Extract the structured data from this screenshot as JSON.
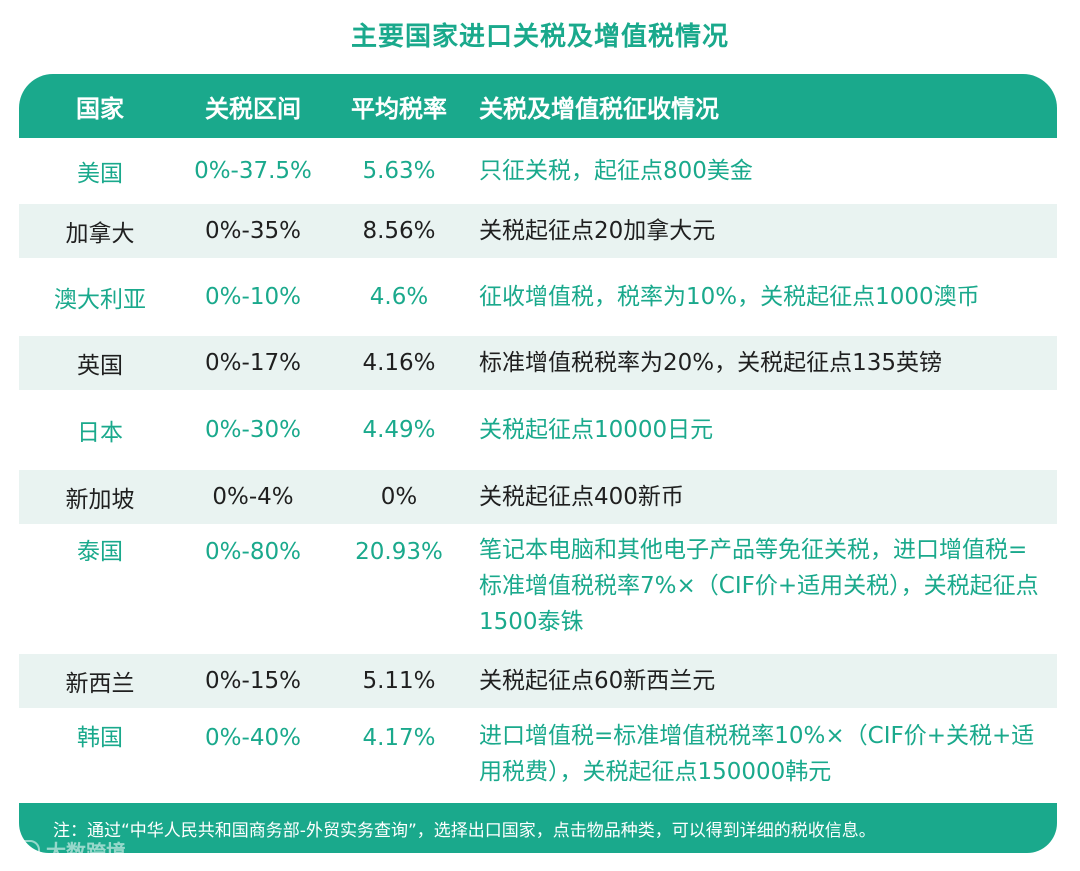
{
  "title": "主要国家进口关税及增值税情况",
  "header": {
    "country": "国家",
    "range": "关税区间",
    "avg": "平均税率",
    "info": "关税及增值税征收情况"
  },
  "rows": [
    {
      "country": "美国",
      "range": "0%-37.5%",
      "avg": "5.63%",
      "info": "只征关税，起征点800美金"
    },
    {
      "country": "加拿大",
      "range": "0%-35%",
      "avg": "8.56%",
      "info": "关税起征点20加拿大元"
    },
    {
      "country": "澳大利亚",
      "range": "0%-10%",
      "avg": "4.6%",
      "info": "征收增值税，税率为10%，关税起征点1000澳币"
    },
    {
      "country": "英国",
      "range": "0%-17%",
      "avg": "4.16%",
      "info": "标准增值税税率为20%，关税起征点135英镑"
    },
    {
      "country": "日本",
      "range": "0%-30%",
      "avg": "4.49%",
      "info": "关税起征点10000日元"
    },
    {
      "country": "新加坡",
      "range": "0%-4%",
      "avg": "0%",
      "info": "关税起征点400新币"
    },
    {
      "country": "泰国",
      "range": "0%-80%",
      "avg": "20.93%",
      "info": "笔记本电脑和其他电子产品等免征关税，进口增值税=标准增值税税率7%×（CIF价+适用关税），关税起征点1500泰铢"
    },
    {
      "country": "新西兰",
      "range": "0%-15%",
      "avg": "5.11%",
      "info": "关税起征点60新西兰元"
    },
    {
      "country": "韩国",
      "range": "0%-40%",
      "avg": "4.17%",
      "info": "进口增值税=标准增值税税率10%×（CIF价+关税+适用税费），关税起征点150000韩元"
    }
  ],
  "footer": "注：通过“中华人民共和国商务部-外贸实务查询”，选择出口国家，点击物品种类，可以得到详细的税收信息。",
  "watermark": "大数跨境",
  "colors": {
    "accent": "#1aa98c",
    "stripe": "#e9f3f1",
    "dark_text": "#1f1f1f"
  }
}
